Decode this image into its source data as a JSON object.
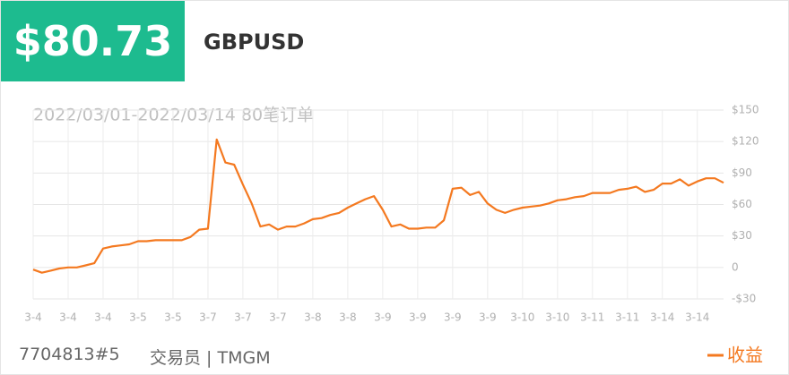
{
  "header": {
    "price": "$80.73",
    "symbol": "GBPUSD"
  },
  "footer": {
    "account": "7704813#5",
    "trader": "交易员 | TMGM"
  },
  "chart_data": {
    "type": "line",
    "subtitle": "2022/03/01-2022/03/14 80笔订单",
    "categories": [
      "3-4",
      null,
      null,
      null,
      "3-4",
      null,
      null,
      null,
      "3-4",
      null,
      null,
      null,
      "3-5",
      null,
      null,
      null,
      "3-5",
      null,
      null,
      null,
      "3-7",
      null,
      null,
      null,
      "3-7",
      null,
      null,
      null,
      "3-7",
      null,
      null,
      null,
      "3-8",
      null,
      null,
      null,
      "3-8",
      null,
      null,
      null,
      "3-9",
      null,
      null,
      null,
      "3-9",
      null,
      null,
      null,
      "3-9",
      null,
      null,
      null,
      "3-9",
      null,
      null,
      null,
      "3-10",
      null,
      null,
      null,
      "3-10",
      null,
      null,
      null,
      "3-11",
      null,
      null,
      null,
      "3-11",
      null,
      null,
      null,
      "3-14",
      null,
      null,
      null,
      "3-14",
      null,
      null,
      null
    ],
    "series": [
      {
        "name": "收益",
        "color": "#f47920",
        "values": [
          -2,
          -5,
          -3,
          -1,
          0,
          0,
          2,
          4,
          18,
          20,
          21,
          22,
          25,
          25,
          26,
          26,
          26,
          26,
          29,
          36,
          37,
          122,
          100,
          98,
          79,
          61,
          39,
          41,
          36,
          39,
          39,
          42,
          46,
          47,
          50,
          52,
          57,
          61,
          65,
          68,
          55,
          39,
          41,
          37,
          37,
          38,
          38,
          45,
          75,
          76,
          69,
          72,
          61,
          55,
          52,
          55,
          57,
          58,
          59,
          61,
          64,
          65,
          67,
          68,
          71,
          71,
          71,
          74,
          75,
          77,
          72,
          74,
          80,
          80,
          84,
          78,
          82,
          85,
          85,
          80.73
        ]
      }
    ],
    "ylim": [
      -30,
      150
    ],
    "yticks": [
      {
        "value": -30,
        "label": "-$30"
      },
      0,
      {
        "value": 30,
        "label": "$30"
      },
      {
        "value": 60,
        "label": "$60"
      },
      {
        "value": 90,
        "label": "$90"
      },
      {
        "value": 120,
        "label": "$120"
      },
      {
        "value": 150,
        "label": "$150"
      }
    ],
    "grid": true
  }
}
